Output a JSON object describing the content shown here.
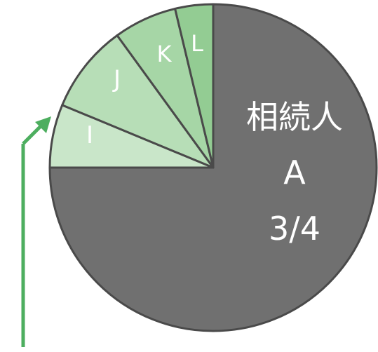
{
  "colors": {
    "main_slice": "#707070",
    "outline": "#4a4a4a",
    "slice_I": "#c9e6c9",
    "slice_J": "#b7deb7",
    "slice_K": "#a6d6a6",
    "slice_L": "#93cc93",
    "arrow": "#4dae5f",
    "label": "#ffffff"
  },
  "chart_data": {
    "type": "pie",
    "slices": [
      {
        "label": "相続人",
        "label_line2": "A",
        "label_line3": "3/4",
        "value": 0.75
      },
      {
        "label": "I",
        "value": 0.0625
      },
      {
        "label": "J",
        "value": 0.0875
      },
      {
        "label": "K",
        "value": 0.0625
      },
      {
        "label": "L",
        "value": 0.0375
      }
    ]
  }
}
